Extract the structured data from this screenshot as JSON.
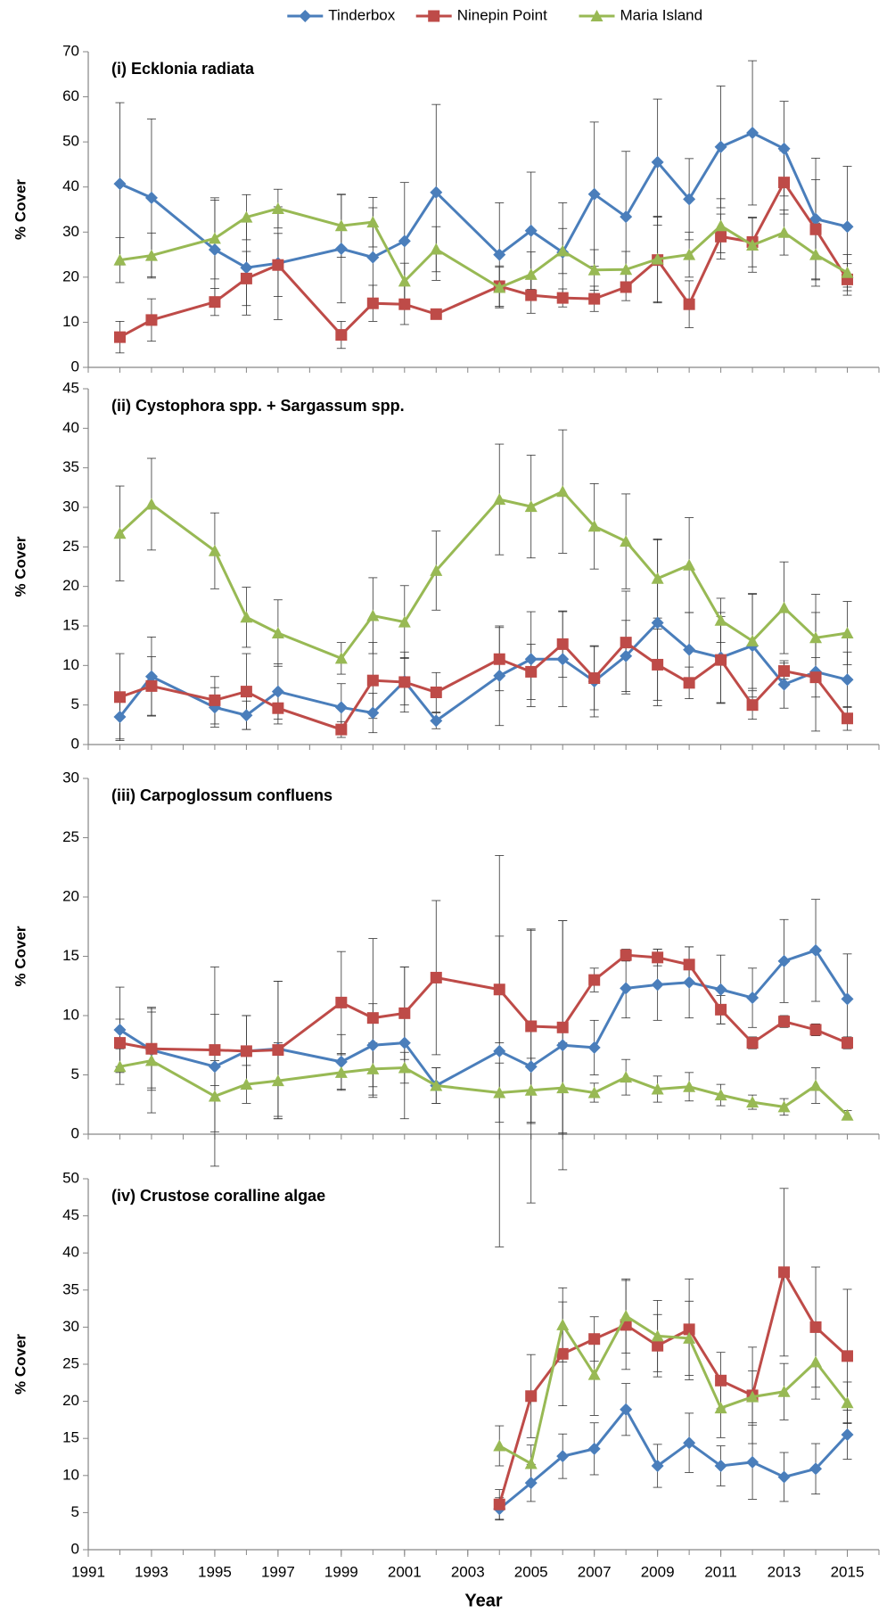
{
  "chart_data": [
    {
      "type": "line",
      "title": "(i) Ecklonia radiata",
      "ylabel": "% Cover",
      "legend": "top",
      "x": [
        1992,
        1993,
        1995,
        1996,
        1997,
        1999,
        2000,
        2001,
        2002,
        2004,
        2005,
        2006,
        2007,
        2008,
        2009,
        2010,
        2011,
        2012,
        2013,
        2014,
        2015
      ],
      "xlim": [
        1991,
        2016
      ],
      "ylim": [
        0,
        70
      ],
      "yticks": [
        0,
        10,
        20,
        30,
        40,
        50,
        60,
        70
      ],
      "series": [
        {
          "name": "Tinderbox",
          "color": "#4a7ebb",
          "marker": "diamond",
          "values": [
            40.7,
            37.6,
            26.1,
            22.1,
            23.1,
            26.3,
            24.4,
            28,
            38.8,
            25,
            30.3,
            25.5,
            38.4,
            33.4,
            45.5,
            37.3,
            48.9,
            52,
            48.5,
            32.9,
            31.2
          ],
          "errors": [
            18,
            17.5,
            11,
            10.5,
            12.5,
            12,
            11,
            13,
            19.5,
            11.5,
            13,
            11,
            16,
            14.5,
            14,
            9,
            13.5,
            16,
            10.5,
            13.5,
            13.4
          ]
        },
        {
          "name": "Ninepin Point",
          "color": "#be4b48",
          "marker": "square",
          "values": [
            6.7,
            10.5,
            14.5,
            19.7,
            22.7,
            7.2,
            14.2,
            14,
            11.8,
            18,
            16,
            15.4,
            15.2,
            17.8,
            23.8,
            14,
            29,
            27.8,
            41,
            30.6,
            19.5
          ],
          "errors": [
            3.5,
            4.7,
            3,
            6,
            7,
            3,
            4,
            4.5,
            0,
            4.5,
            4,
            2,
            2.8,
            3,
            9.5,
            5.2,
            5,
            5.5,
            7,
            11,
            3.5
          ]
        },
        {
          "name": "Maria Island",
          "color": "#98b954",
          "marker": "triangle",
          "values": [
            23.8,
            24.8,
            28.6,
            33.3,
            35.2,
            31.4,
            32.2,
            19.1,
            26.2,
            17.7,
            20.6,
            25.8,
            21.6,
            21.7,
            24,
            25,
            31.4,
            27.1,
            29.9,
            25,
            21
          ],
          "errors": [
            5,
            5,
            9,
            5,
            4.3,
            7,
            5.5,
            4,
            5,
            4.5,
            5,
            5,
            4.5,
            4,
            9.5,
            5,
            6,
            6,
            5,
            7,
            4
          ]
        }
      ]
    },
    {
      "type": "line",
      "title": "(ii) Cystophora spp. + Sargassum spp.",
      "ylabel": "% Cover",
      "x": [
        1992,
        1993,
        1995,
        1996,
        1997,
        1999,
        2000,
        2001,
        2002,
        2004,
        2005,
        2006,
        2007,
        2008,
        2009,
        2010,
        2011,
        2012,
        2013,
        2014,
        2015
      ],
      "xlim": [
        1991,
        2016
      ],
      "ylim": [
        0,
        45
      ],
      "yticks": [
        0,
        5,
        10,
        15,
        20,
        25,
        30,
        35,
        40,
        45
      ],
      "series": [
        {
          "name": "Tinderbox",
          "color": "#4a7ebb",
          "marker": "diamond",
          "values": [
            3.5,
            8.6,
            4.7,
            3.7,
            6.7,
            4.7,
            4,
            8,
            3,
            8.7,
            10.8,
            10.8,
            8,
            11.2,
            15.4,
            12,
            11,
            12.5,
            7.6,
            9.2,
            8.2
          ],
          "errors": [
            2.8,
            5,
            2.5,
            1.8,
            3.5,
            3,
            2.5,
            3,
            1,
            6.3,
            6,
            6,
            4.5,
            4.5,
            10.5,
            4.7,
            5.7,
            6.5,
            3,
            7.5,
            3.5
          ]
        },
        {
          "name": "Ninepin Point",
          "color": "#be4b48",
          "marker": "square",
          "values": [
            6,
            7.4,
            5.6,
            6.7,
            4.6,
            1.9,
            8.1,
            7.9,
            6.6,
            10.8,
            9.2,
            12.7,
            8.4,
            12.9,
            10.1,
            7.8,
            10.7,
            5,
            9.3,
            8.5,
            3.3
          ],
          "errors": [
            5.5,
            3.7,
            3,
            4.8,
            2,
            1,
            4.8,
            3.8,
            2.5,
            4,
            3.5,
            4.2,
            4,
            6.5,
            4.5,
            2,
            5.5,
            1.8,
            1,
            2.5,
            1.5
          ]
        },
        {
          "name": "Maria Island",
          "color": "#98b954",
          "marker": "triangle",
          "values": [
            26.7,
            30.4,
            24.5,
            16.1,
            14.1,
            10.9,
            16.3,
            15.5,
            22,
            31,
            30.1,
            32,
            27.6,
            25.7,
            21,
            22.7,
            15.7,
            13.1,
            17.3,
            13.5,
            14.1
          ],
          "errors": [
            6,
            5.8,
            4.8,
            3.8,
            4.2,
            2,
            4.8,
            4.6,
            5,
            7,
            6.5,
            7.8,
            5.4,
            6,
            5,
            6,
            2.8,
            6,
            5.8,
            5.5,
            4
          ]
        }
      ]
    },
    {
      "type": "line",
      "title": "(iii) Carpoglossum confluens",
      "ylabel": "% Cover",
      "x": [
        1992,
        1993,
        1995,
        1996,
        1997,
        1999,
        2000,
        2001,
        2002,
        2004,
        2005,
        2006,
        2007,
        2008,
        2009,
        2010,
        2011,
        2012,
        2013,
        2014,
        2015
      ],
      "xlim": [
        1991,
        2016
      ],
      "ylim": [
        0,
        30
      ],
      "yticks": [
        0,
        5,
        10,
        15,
        20,
        25,
        30
      ],
      "series": [
        {
          "name": "Tinderbox",
          "color": "#4a7ebb",
          "marker": "diamond",
          "values": [
            8.8,
            7.1,
            5.7,
            7,
            7.2,
            6.1,
            7.5,
            7.7,
            4.1,
            7,
            5.7,
            7.5,
            7.3,
            12.3,
            12.6,
            12.8,
            12.2,
            11.5,
            14.6,
            15.5,
            11.4
          ],
          "errors": [
            3.6,
            3.2,
            8.4,
            3,
            5.7,
            2.3,
            3.5,
            6.4,
            1.5,
            16.5,
            11.5,
            10.5,
            2.3,
            2.5,
            3,
            3,
            2.9,
            2.5,
            3.5,
            4.3,
            3.8
          ]
        },
        {
          "name": "Ninepin Point",
          "color": "#be4b48",
          "marker": "square",
          "values": [
            7.7,
            7.2,
            7.1,
            7,
            7.1,
            11.1,
            9.8,
            10.2,
            13.2,
            12.2,
            9.1,
            9,
            13,
            15.1,
            14.9,
            14.3,
            10.5,
            7.7,
            9.5,
            8.8,
            7.7
          ],
          "errors": [
            2,
            3.5,
            3,
            3,
            5.8,
            4.3,
            6.7,
            3.9,
            6.5,
            4.5,
            8.2,
            9,
            1,
            0.5,
            0.7,
            1.5,
            1.2,
            0.5,
            0.5,
            0.5,
            0.5
          ]
        },
        {
          "name": "Maria Island",
          "color": "#98b954",
          "marker": "triangle",
          "values": [
            5.7,
            6.2,
            3.2,
            4.2,
            4.5,
            5.2,
            5.5,
            5.6,
            4.1,
            3.5,
            3.7,
            3.9,
            3.5,
            4.8,
            3.8,
            4,
            3.3,
            2.7,
            2.3,
            4.1,
            1.6
          ],
          "errors": [
            1.5,
            4.4,
            3,
            1.6,
            3.2,
            1.5,
            2.2,
            1.3,
            1.5,
            2.5,
            2.7,
            3.8,
            0.8,
            1.5,
            1.1,
            1.2,
            0.9,
            0.6,
            0.7,
            1.5,
            0.4
          ]
        }
      ]
    },
    {
      "type": "line",
      "title": "(iv) Crustose coralline algae",
      "ylabel": "% Cover",
      "xlabel": "Year",
      "x": [
        2004,
        2005,
        2006,
        2007,
        2008,
        2009,
        2010,
        2011,
        2012,
        2013,
        2014,
        2015
      ],
      "xlim": [
        1991,
        2016
      ],
      "xticks": [
        1991,
        1993,
        1995,
        1997,
        1999,
        2001,
        2003,
        2005,
        2007,
        2009,
        2011,
        2013,
        2015
      ],
      "ylim": [
        0,
        50
      ],
      "yticks": [
        0,
        5,
        10,
        15,
        20,
        25,
        30,
        35,
        40,
        45,
        50
      ],
      "series": [
        {
          "name": "Tinderbox",
          "color": "#4a7ebb",
          "marker": "diamond",
          "values": [
            5.5,
            9,
            12.6,
            13.6,
            18.9,
            11.3,
            14.4,
            11.3,
            11.8,
            9.8,
            10.9,
            15.5
          ],
          "errors": [
            1.5,
            2.5,
            3,
            3.5,
            3.5,
            2.9,
            4,
            2.7,
            5,
            3.3,
            3.4,
            3.3
          ]
        },
        {
          "name": "Ninepin Point",
          "color": "#be4b48",
          "marker": "square",
          "values": [
            6.1,
            20.7,
            26.4,
            28.4,
            30.3,
            27.5,
            29.7,
            22.8,
            20.8,
            37.4,
            30,
            26.1
          ],
          "errors": [
            2,
            5.6,
            7,
            3,
            6,
            4.2,
            6.8,
            3.8,
            6.5,
            11.3,
            8.1,
            9
          ]
        },
        {
          "name": "Maria Island",
          "color": "#98b954",
          "marker": "triangle",
          "values": [
            14,
            11.6,
            30.3,
            23.6,
            31.5,
            28.8,
            28.5,
            19.1,
            20.6,
            21.3,
            25.3,
            19.8
          ],
          "errors": [
            2.7,
            2.5,
            5,
            5.5,
            5,
            4.8,
            5,
            4,
            3.5,
            3.8,
            5,
            2.8
          ]
        }
      ]
    }
  ]
}
